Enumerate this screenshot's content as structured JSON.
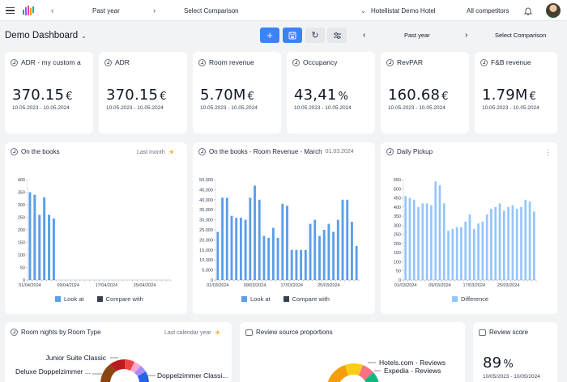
{
  "topbar": {
    "period": "Past year",
    "comparison": "Select Comparison",
    "hotel": "Hotellistat Demo Hotel",
    "competitors": "All competitors",
    "colors": {
      "accent": "#3b82f6"
    }
  },
  "toolbar": {
    "title": "Demo Dashboard",
    "period": "Past year",
    "comparison": "Select Comparison"
  },
  "kpis": [
    {
      "title": "ADR  - my custom a",
      "value": "370.15",
      "unit": "€",
      "dates": "10.05.2023 - 10.05.2024"
    },
    {
      "title": "ADR",
      "value": "370.15",
      "unit": "€",
      "dates": "10.05.2023 - 10.05.2024"
    },
    {
      "title": "Room revenue",
      "value": "5.70M",
      "unit": "€",
      "dates": "10.05.2023 - 10.05.2024"
    },
    {
      "title": "Occupancy",
      "value": "43,41",
      "unit": "%",
      "dates": "10.05.2023 - 10.05.2024"
    },
    {
      "title": "RevPAR",
      "value": "160.68",
      "unit": "€",
      "dates": "10.05.2023 - 10.05.2024"
    },
    {
      "title": "F&B revenue",
      "value": "1.79M",
      "unit": "€",
      "dates": "10.05.2023 - 10.05.2024"
    }
  ],
  "panels": {
    "books": {
      "title": "On the books",
      "sub": "Last month"
    },
    "books_rev": {
      "title": "On the books  - Room Revenue - March",
      "sub": "01.03.2024"
    },
    "pickup": {
      "title": "Daily Pickup"
    },
    "room_nights": {
      "title": "Room nights by Room Type",
      "sub": "Last calendar year"
    },
    "review_src": {
      "title": "Review source proportions"
    },
    "review_score": {
      "title": "Review score",
      "value": "89",
      "unit": "%",
      "dates": "10/05/2023 - 10/05/2024"
    }
  },
  "chart_data": [
    {
      "type": "bar",
      "title": "On the books",
      "ylim": [
        0,
        400
      ],
      "yticks": [
        0,
        50,
        100,
        150,
        200,
        250,
        300,
        350,
        400
      ],
      "x_ticks": [
        "01/04/2024",
        "09/04/2024",
        "17/04/2024",
        "25/04/2024"
      ],
      "days": 30,
      "series": [
        {
          "name": "Look at",
          "color": "#5b9ee9",
          "values": [
            350,
            340,
            260,
            330,
            260,
            245
          ]
        },
        {
          "name": "Compare with",
          "color": "#374151",
          "values": []
        }
      ]
    },
    {
      "type": "bar",
      "title": "On the books  - Room Revenue - March",
      "ylim": [
        0,
        50000
      ],
      "yticks": [
        0,
        5000,
        10000,
        15000,
        20000,
        25000,
        30000,
        35000,
        40000,
        45000,
        50000
      ],
      "ytick_labels": [
        "0",
        "5,000",
        "10,000",
        "15,000",
        "20,000",
        "25,000",
        "30,000",
        "35,000",
        "40,000",
        "45,000",
        "50,000"
      ],
      "x_ticks": [
        "01/03/2024",
        "09/03/2024",
        "17/03/2024",
        "25/03/2024"
      ],
      "days": 31,
      "series": [
        {
          "name": "Look at",
          "color": "#5b9ee9",
          "values": [
            24000,
            41000,
            41000,
            32000,
            31000,
            31000,
            30000,
            41000,
            47000,
            40000,
            22000,
            21000,
            26000,
            21000,
            38000,
            37000,
            15000,
            15000,
            15000,
            15000,
            28000,
            30000,
            22000,
            25000,
            28000,
            24000,
            30000,
            40000,
            40000,
            29000,
            17000
          ]
        },
        {
          "name": "Compare with",
          "color": "#374151",
          "values": []
        }
      ]
    },
    {
      "type": "bar",
      "title": "Daily Pickup",
      "ylim": [
        0,
        550
      ],
      "yticks": [
        0,
        50,
        100,
        150,
        200,
        250,
        300,
        350,
        400,
        450,
        500,
        550
      ],
      "x_ticks": [
        "01/03/2024",
        "09/03/2024",
        "17/03/2024",
        "25/03/2024"
      ],
      "days": 31,
      "series": [
        {
          "name": "Difference",
          "color": "#93c5fd",
          "values": [
            460,
            450,
            440,
            400,
            420,
            420,
            410,
            540,
            520,
            420,
            270,
            280,
            290,
            290,
            320,
            360,
            280,
            310,
            320,
            360,
            390,
            400,
            420,
            380,
            400,
            410,
            390,
            400,
            440,
            430,
            375
          ]
        }
      ]
    }
  ],
  "donut_labels": {
    "room_types": [
      "Junior Suite Classic",
      "Deluxe Doppelzimmer ...",
      "Doppelzimmer Classi..."
    ],
    "review_sources": [
      "Hotels.com - Reviews",
      "Expedia - Reviews"
    ]
  }
}
